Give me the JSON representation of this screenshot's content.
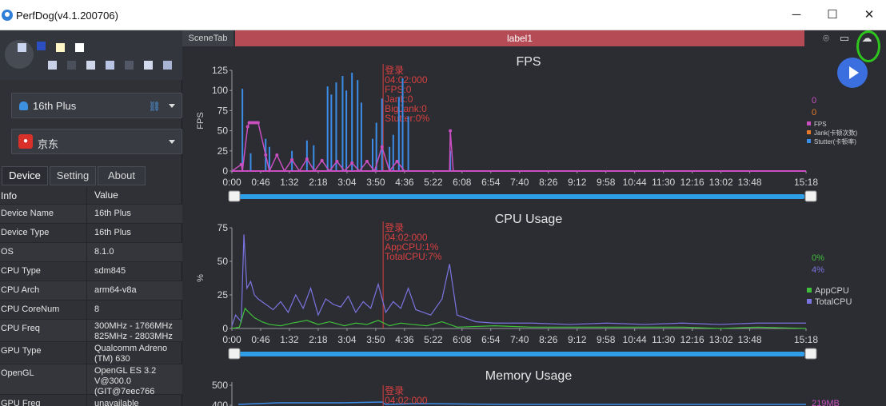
{
  "window": {
    "title": "PerfDog(v4.1.200706)",
    "minimize": "─",
    "maximize": "☐",
    "close": "✕"
  },
  "device_select": {
    "label": "16th Plus"
  },
  "app_select": {
    "label": "京东"
  },
  "tabs": [
    {
      "label": "Device",
      "active": true
    },
    {
      "label": "Setting",
      "active": false
    },
    {
      "label": "About",
      "active": false
    }
  ],
  "info_table": {
    "headers": [
      "Info",
      "Value"
    ],
    "rows": [
      {
        "k": "Device Name",
        "v": "16th Plus"
      },
      {
        "k": "Device Type",
        "v": "16th Plus"
      },
      {
        "k": "OS",
        "v": "8.1.0"
      },
      {
        "k": "CPU Type",
        "v": "sdm845"
      },
      {
        "k": "CPU Arch",
        "v": "arm64-v8a"
      },
      {
        "k": "CPU CoreNum",
        "v": "8"
      },
      {
        "k": "CPU Freq",
        "v": "300MHz - 1766MHz\n825MHz - 2803MHz"
      },
      {
        "k": "GPU Type",
        "v": "Qualcomm Adreno\n(TM) 630"
      },
      {
        "k": "OpenGL",
        "v": "OpenGL ES 3.2\nV@300.0\n(GIT@7eec766"
      },
      {
        "k": "GPU Freq",
        "v": "unavailable"
      }
    ]
  },
  "scene": {
    "tab_label": "SceneTab",
    "label": "label1"
  },
  "colors": {
    "fps": "#c94fc0",
    "jank": "#e8792a",
    "stutter": "#3c8de8",
    "appcpu": "#3fbf3a",
    "totalcpu": "#7b74e0",
    "marker": "#d84040",
    "axis": "#9a9ca2",
    "slider": "#2e9ee8"
  },
  "icons": [
    "location-icon",
    "folder-icon",
    "cloud-icon",
    "play-icon"
  ],
  "time_ticks": [
    "0:00",
    "0:46",
    "1:32",
    "2:18",
    "3:04",
    "3:50",
    "4:36",
    "5:22",
    "6:08",
    "6:54",
    "7:40",
    "8:26",
    "9:12",
    "9:58",
    "10:44",
    "11:30",
    "12:16",
    "13:02",
    "13:48",
    "15:18"
  ],
  "chart_data": [
    {
      "type": "line",
      "title": "FPS",
      "ylabel": "FPS",
      "ylim": [
        0,
        125
      ],
      "yticks": [
        0,
        25,
        50,
        75,
        100,
        125
      ],
      "current_values": [
        "0",
        "0"
      ],
      "series": [
        {
          "name": "FPS",
          "x": [
            0,
            0.25,
            0.28,
            0.42,
            0.46,
            0.5,
            0.55,
            0.6,
            0.65,
            0.7,
            0.9,
            1.0,
            1.2,
            1.4,
            1.6,
            1.8,
            2.0,
            2.2,
            2.4,
            2.6,
            2.8,
            3.0,
            3.2,
            3.4,
            3.6,
            3.8,
            4.0,
            4.2,
            4.4,
            4.6,
            5.0,
            5.5,
            5.8,
            5.82,
            5.9,
            6.0,
            7.0,
            8.0,
            9.0,
            10.0,
            11.0,
            12.0,
            13.0,
            14.0,
            15.3
          ],
          "y": [
            0,
            8,
            0,
            55,
            60,
            60,
            60,
            60,
            60,
            60,
            20,
            0,
            20,
            0,
            14,
            0,
            15,
            0,
            13,
            0,
            12,
            0,
            10,
            0,
            12,
            0,
            30,
            0,
            12,
            0,
            0,
            0,
            0,
            50,
            0,
            0,
            0,
            0,
            0,
            0,
            0,
            0,
            0,
            0,
            0
          ]
        },
        {
          "name": "Jank(卡顿次数)",
          "x": [
            0,
            15.3
          ],
          "y": [
            0,
            0
          ]
        },
        {
          "name": "Stutter(卡顿率)",
          "x": [
            0.28,
            0.5,
            0.9,
            1.0,
            1.6,
            2.0,
            2.18,
            2.55,
            2.65,
            2.78,
            2.95,
            3.05,
            3.2,
            3.35,
            3.45,
            3.75,
            3.85,
            4.0,
            4.2,
            4.3,
            4.45,
            4.55,
            4.7,
            5.82
          ],
          "y": [
            102,
            22,
            40,
            30,
            25,
            38,
            32,
            105,
            95,
            110,
            118,
            100,
            122,
            113,
            85,
            40,
            60,
            90,
            30,
            45,
            92,
            115,
            68,
            25
          ]
        }
      ],
      "annotation": [
        "登录",
        "04:02:000",
        "FPS:0",
        "Jank:0",
        "BigJank:0",
        "Stutter:0%"
      ],
      "legend": [
        "FPS",
        "Jank(卡顿次数)",
        "Stutter(卡顿率)"
      ]
    },
    {
      "type": "line",
      "title": "CPU Usage",
      "ylabel": "%",
      "ylim": [
        0,
        75
      ],
      "yticks": [
        0,
        25,
        50,
        75
      ],
      "current_values": [
        "0%",
        "4%"
      ],
      "series": [
        {
          "name": "AppCPU",
          "x": [
            0,
            0.2,
            0.35,
            0.45,
            0.6,
            0.8,
            1.0,
            1.3,
            1.6,
            2.0,
            2.3,
            2.6,
            3.0,
            3.3,
            3.6,
            3.9,
            4.2,
            4.5,
            4.8,
            5.2,
            5.6,
            6.0,
            7.0,
            8.0,
            9.0,
            10.0,
            11.0,
            12.0,
            13.0,
            14.0,
            15.3
          ],
          "y": [
            0,
            1,
            15,
            12,
            8,
            5,
            3,
            2,
            4,
            6,
            3,
            5,
            2,
            4,
            3,
            6,
            2,
            4,
            3,
            2,
            5,
            1,
            2,
            1,
            1,
            1,
            1,
            1,
            0,
            1,
            0
          ]
        },
        {
          "name": "TotalCPU",
          "x": [
            0,
            0.1,
            0.25,
            0.32,
            0.4,
            0.5,
            0.6,
            0.7,
            0.9,
            1.1,
            1.3,
            1.5,
            1.7,
            1.9,
            2.1,
            2.3,
            2.5,
            2.7,
            2.9,
            3.1,
            3.3,
            3.5,
            3.7,
            3.9,
            4.1,
            4.3,
            4.5,
            4.7,
            4.9,
            5.1,
            5.3,
            5.6,
            5.8,
            6.0,
            6.5,
            7.0,
            8.0,
            9.0,
            10.0,
            11.0,
            12.0,
            13.0,
            14.0,
            15.3
          ],
          "y": [
            2,
            10,
            5,
            70,
            30,
            35,
            25,
            22,
            18,
            14,
            20,
            12,
            25,
            15,
            30,
            10,
            22,
            18,
            16,
            24,
            12,
            20,
            15,
            33,
            12,
            20,
            15,
            30,
            14,
            12,
            10,
            22,
            48,
            10,
            5,
            4,
            4,
            3,
            4,
            3,
            4,
            3,
            4,
            4
          ]
        }
      ],
      "annotation": [
        "登录",
        "04:02:000",
        "AppCPU:1%",
        "TotalCPU:7%"
      ],
      "legend": [
        "AppCPU",
        "TotalCPU"
      ]
    },
    {
      "type": "line",
      "title": "Memory Usage",
      "ylim": [
        0,
        500
      ],
      "yticks": [
        400,
        500
      ],
      "current_values": [
        "219MB"
      ],
      "annotation": [
        "登录",
        "04:02:000"
      ]
    }
  ]
}
